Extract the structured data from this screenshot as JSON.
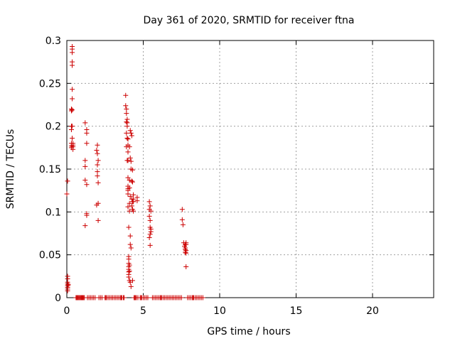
{
  "chart_data": {
    "type": "scatter",
    "title": "Day 361 of 2020, SRMTID for receiver ftna",
    "xlabel": "GPS time / hours",
    "ylabel": "SRMTID / TECUs",
    "xlim": [
      0,
      24
    ],
    "ylim": [
      0,
      0.3
    ],
    "x_ticks": [
      0,
      5,
      10,
      15,
      20
    ],
    "x_tick_labels": [
      "0",
      "5",
      "10",
      "15",
      "20"
    ],
    "y_ticks": [
      0,
      0.05,
      0.1,
      0.15,
      0.2,
      0.25,
      0.3
    ],
    "y_tick_labels": [
      "0",
      "0.05",
      "0.1",
      "0.15",
      "0.2",
      "0.25",
      "0.3"
    ],
    "grid": true,
    "marker": "plus",
    "color": "#cc0000",
    "series": [
      {
        "x": [
          0.0,
          0.05,
          0.05,
          0.05,
          0.05,
          0.05,
          0.05,
          0.05,
          0.05,
          0.05,
          0.1,
          0.3,
          0.3,
          0.3,
          0.3,
          0.3,
          0.3,
          0.3,
          0.35,
          0.35,
          0.35,
          0.35,
          0.35,
          0.35,
          0.35,
          0.35,
          0.35,
          0.35,
          0.4,
          0.4,
          0.4,
          0.4,
          1.2,
          1.2,
          1.2,
          1.2,
          1.2,
          1.3,
          1.3,
          1.3,
          1.3,
          1.3,
          1.3,
          1.95,
          1.95,
          2.0,
          2.0,
          2.0,
          2.0,
          2.0,
          2.05,
          2.05,
          2.05,
          2.05,
          3.85,
          3.85,
          3.9,
          3.9,
          3.9,
          3.9,
          3.9,
          3.95,
          3.95,
          3.95,
          3.95,
          3.95,
          4.0,
          4.0,
          4.0,
          4.0,
          4.0,
          4.0,
          4.0,
          4.0,
          4.0,
          4.0,
          4.05,
          4.05,
          4.05,
          4.05,
          4.05,
          4.05,
          4.05,
          4.05,
          4.05,
          4.1,
          4.1,
          4.1,
          4.1,
          4.1,
          4.1,
          4.1,
          4.1,
          4.15,
          4.15,
          4.15,
          4.15,
          4.15,
          4.15,
          4.2,
          4.2,
          4.2,
          4.2,
          4.2,
          4.25,
          4.25,
          4.25,
          4.25,
          4.3,
          4.3,
          4.3,
          4.3,
          4.3,
          4.35,
          4.35,
          4.35,
          4.35,
          4.6,
          4.6,
          5.4,
          5.4,
          5.4,
          5.4,
          5.45,
          5.45,
          5.45,
          5.45,
          5.45,
          5.5,
          5.5,
          5.5,
          7.55,
          7.55,
          7.6,
          7.65,
          7.7,
          7.75,
          7.75,
          7.75,
          7.75,
          7.8,
          7.8,
          7.8,
          7.8,
          7.8
        ],
        "y": [
          0.121,
          0.136,
          0.025,
          0.022,
          0.018,
          0.016,
          0.014,
          0.012,
          0.01,
          0.008,
          0.015,
          0.22,
          0.218,
          0.2,
          0.196,
          0.18,
          0.177,
          0.175,
          0.293,
          0.29,
          0.286,
          0.275,
          0.271,
          0.243,
          0.232,
          0.219,
          0.2,
          0.186,
          0.18,
          0.178,
          0.176,
          0.173,
          0.204,
          0.16,
          0.153,
          0.137,
          0.084,
          0.196,
          0.192,
          0.18,
          0.132,
          0.098,
          0.096,
          0.172,
          0.108,
          0.178,
          0.168,
          0.155,
          0.147,
          0.142,
          0.16,
          0.134,
          0.11,
          0.09,
          0.236,
          0.224,
          0.22,
          0.215,
          0.205,
          0.192,
          0.176,
          0.208,
          0.204,
          0.2,
          0.186,
          0.16,
          0.185,
          0.178,
          0.17,
          0.16,
          0.14,
          0.13,
          0.127,
          0.125,
          0.121,
          0.106,
          0.082,
          0.048,
          0.045,
          0.04,
          0.036,
          0.033,
          0.03,
          0.027,
          0.024,
          0.176,
          0.137,
          0.128,
          0.11,
          0.101,
          0.038,
          0.031,
          0.02,
          0.195,
          0.163,
          0.118,
          0.072,
          0.062,
          0.018,
          0.192,
          0.159,
          0.15,
          0.058,
          0.013,
          0.189,
          0.136,
          0.115,
          0.107,
          0.149,
          0.135,
          0.112,
          0.103,
          0.02,
          0.12,
          0.115,
          0.112,
          0.101,
          0.117,
          0.113,
          0.112,
          0.103,
          0.095,
          0.07,
          0.107,
          0.09,
          0.082,
          0.074,
          0.061,
          0.101,
          0.08,
          0.077,
          0.103,
          0.091,
          0.085,
          0.064,
          0.06,
          0.062,
          0.058,
          0.056,
          0.053,
          0.064,
          0.062,
          0.055,
          0.052,
          0.036
        ]
      },
      {
        "x": [
          0.6,
          0.65,
          0.7,
          0.75,
          0.8,
          0.85,
          0.9,
          0.95,
          1.0,
          1.05,
          1.1,
          1.15,
          1.35,
          1.45,
          1.55,
          1.65,
          1.75,
          1.85,
          2.1,
          2.2,
          2.3,
          2.5,
          2.55,
          2.6,
          2.7,
          2.8,
          2.9,
          3.0,
          3.1,
          3.2,
          3.3,
          3.4,
          3.5,
          3.55,
          3.6,
          3.7,
          3.75,
          4.4,
          4.45,
          4.5,
          4.55,
          4.65,
          4.8,
          4.85,
          4.9,
          5.0,
          5.1,
          5.2,
          5.3,
          5.6,
          5.7,
          5.8,
          5.9,
          6.0,
          6.1,
          6.15,
          6.2,
          6.3,
          6.4,
          6.5,
          6.6,
          6.7,
          6.8,
          6.9,
          7.0,
          7.1,
          7.2,
          7.3,
          7.4,
          7.5,
          7.9,
          8.0,
          8.1,
          8.2,
          8.25,
          8.3,
          8.4,
          8.5,
          8.6,
          8.7,
          8.8,
          8.9
        ],
        "y": [
          0,
          0,
          0,
          0,
          0,
          0,
          0,
          0,
          0,
          0,
          0,
          0,
          0,
          0,
          0,
          0,
          0,
          0,
          0,
          0,
          0,
          0,
          0,
          0,
          0,
          0,
          0,
          0,
          0,
          0,
          0,
          0,
          0,
          0,
          0,
          0,
          0,
          0,
          0,
          0,
          0,
          0,
          0,
          0,
          0,
          0,
          0,
          0,
          0,
          0,
          0,
          0,
          0,
          0,
          0,
          0,
          0,
          0,
          0,
          0,
          0,
          0,
          0,
          0,
          0,
          0,
          0,
          0,
          0,
          0,
          0,
          0,
          0,
          0,
          0,
          0,
          0,
          0,
          0,
          0,
          0,
          0
        ]
      }
    ]
  }
}
